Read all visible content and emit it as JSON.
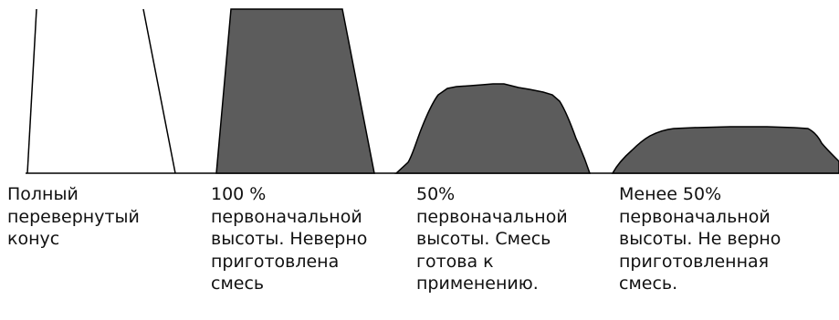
{
  "stages": [
    {
      "caption": "Полный\nперевернутый\nконус"
    },
    {
      "caption": "100 %\nпервоначальной\nвысоты. Неверно\nприготовлена\nсмесь"
    },
    {
      "caption": "50%\nпервоначальной\nвысоты. Смесь\nготова к\nприменению."
    },
    {
      "caption": "Менее 50%\nпервоначальной\nвысоты. Не верно\nприготовленная\nсмесь."
    }
  ],
  "colors": {
    "outline": "#000000",
    "filled": "#5c5c5c",
    "empty": "#ffffff"
  }
}
